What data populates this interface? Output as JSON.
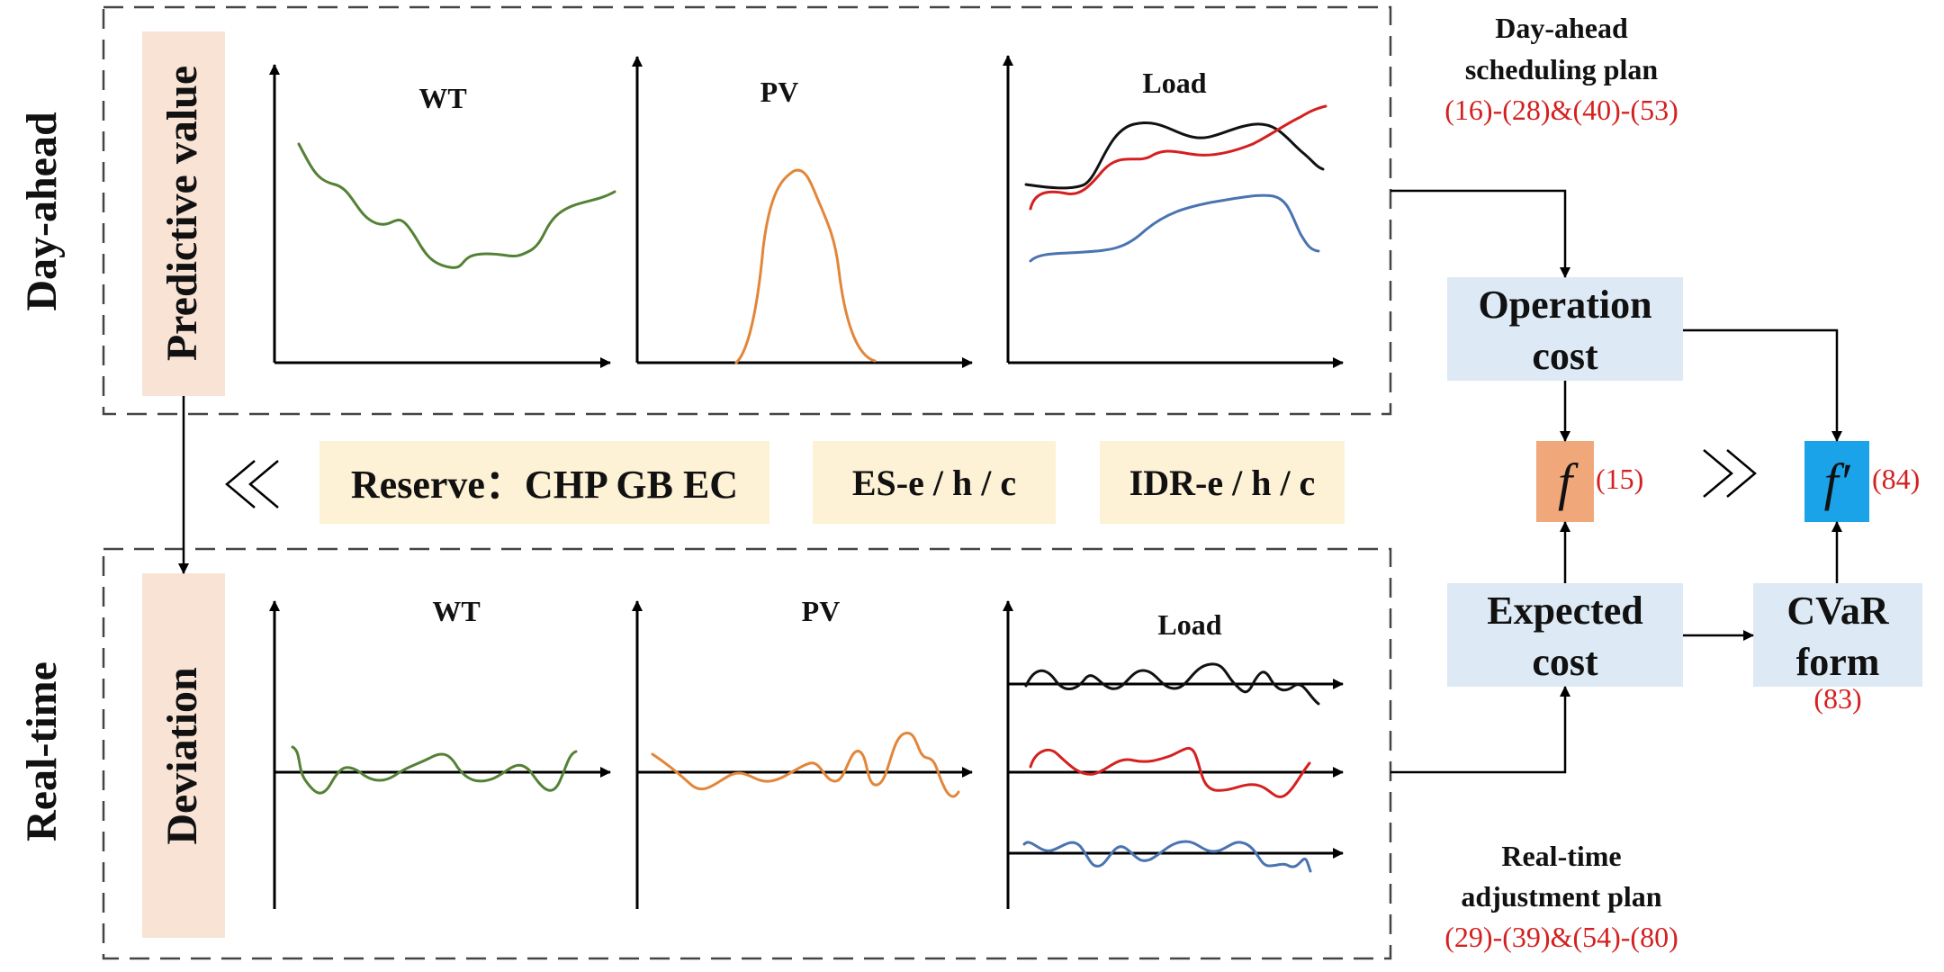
{
  "colors": {
    "wt": "#538135",
    "pv": "#e2863a",
    "load_black": "#111111",
    "load_red": "#d42020",
    "load_blue": "#4a74b0",
    "stage_label_bg": "#f8e3d5",
    "reserve_bg": "#fdf1d6",
    "cost_bg": "#ddeaf5",
    "f_bg": "#f0a77a",
    "fprime_bg": "#1aa3e8",
    "equation_red": "#d42020"
  },
  "stages": {
    "day_ahead": "Day-ahead",
    "real_time": "Real-time"
  },
  "day_ahead_panel": {
    "label": "Predictive value",
    "charts": {
      "wt": "WT",
      "pv": "PV",
      "load": "Load"
    }
  },
  "real_time_panel": {
    "label": "Deviation",
    "charts": {
      "wt": "WT",
      "pv": "PV",
      "load": "Load"
    }
  },
  "resources": {
    "reserve": "Reserve：CHP GB EC",
    "es": "ES-e / h / c",
    "idr": "IDR-e / h / c"
  },
  "plans": {
    "day_ahead_line1": "Day-ahead",
    "day_ahead_line2": "scheduling plan",
    "day_ahead_eqs": "(16)-(28)&(40)-(53)",
    "real_time_line1": "Real-time",
    "real_time_line2": "adjustment plan",
    "real_time_eqs": "(29)-(39)&(54)-(80)"
  },
  "blocks": {
    "operation_cost_line1": "Operation",
    "operation_cost_line2": "cost",
    "expected_cost_line1": "Expected",
    "expected_cost_line2": "cost",
    "cvar_line1": "CVaR",
    "cvar_line2": "form",
    "cvar_eq": "(83)",
    "f_symbol": "f",
    "f_eq": "(15)",
    "fprime_symbol": "f′",
    "fprime_eq": "(84)"
  },
  "icons": [
    "double-left-chevron-icon",
    "double-right-chevron-icon"
  ]
}
